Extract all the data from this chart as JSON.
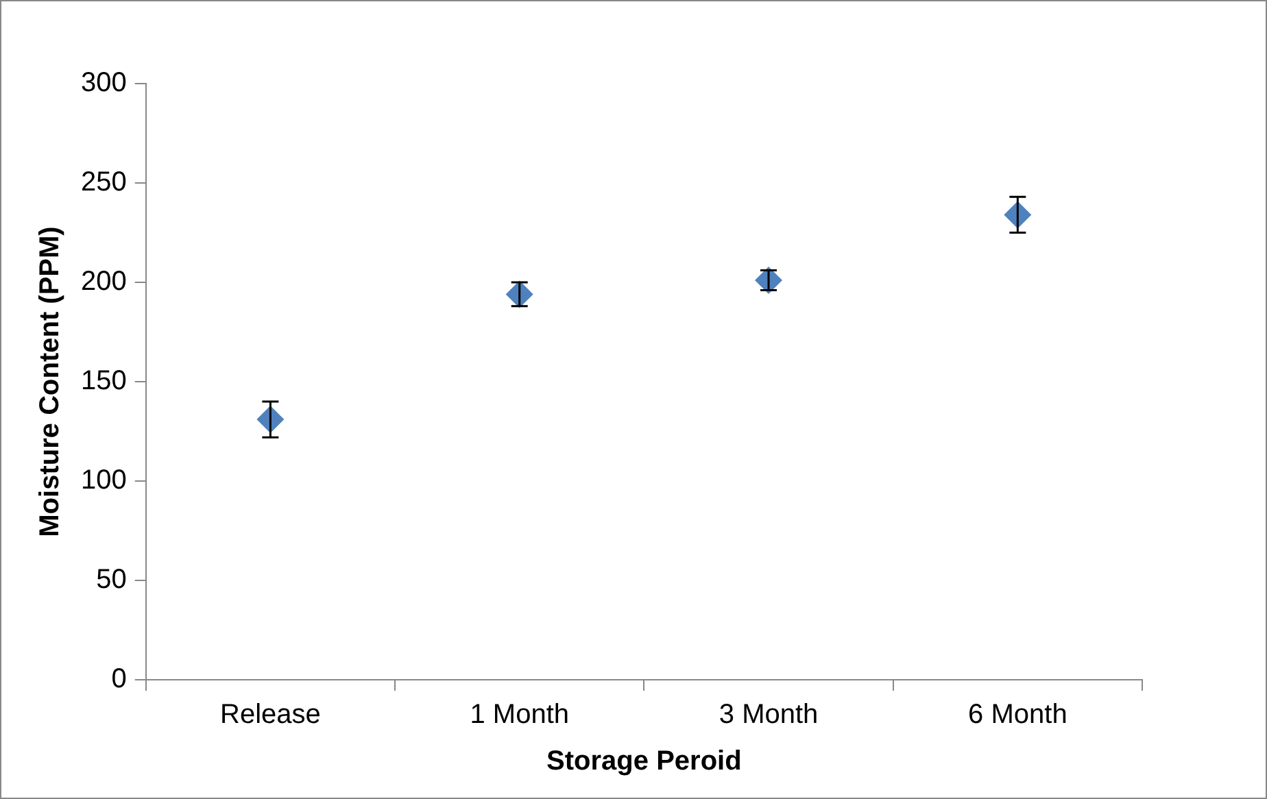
{
  "chart_data": {
    "type": "scatter",
    "xlabel": "Storage Peroid",
    "ylabel": "Moisture Content (PPM)",
    "categories": [
      "Release",
      "1 Month",
      "3 Month",
      "6 Month"
    ],
    "values": [
      131,
      194,
      201,
      234
    ],
    "errors": [
      9,
      6,
      5,
      9
    ],
    "color": "#4f81bd",
    "marker": "diamond",
    "ylim": [
      0,
      300
    ],
    "yticks": [
      0,
      50,
      100,
      150,
      200,
      250,
      300
    ],
    "grid": false,
    "legend": false
  }
}
